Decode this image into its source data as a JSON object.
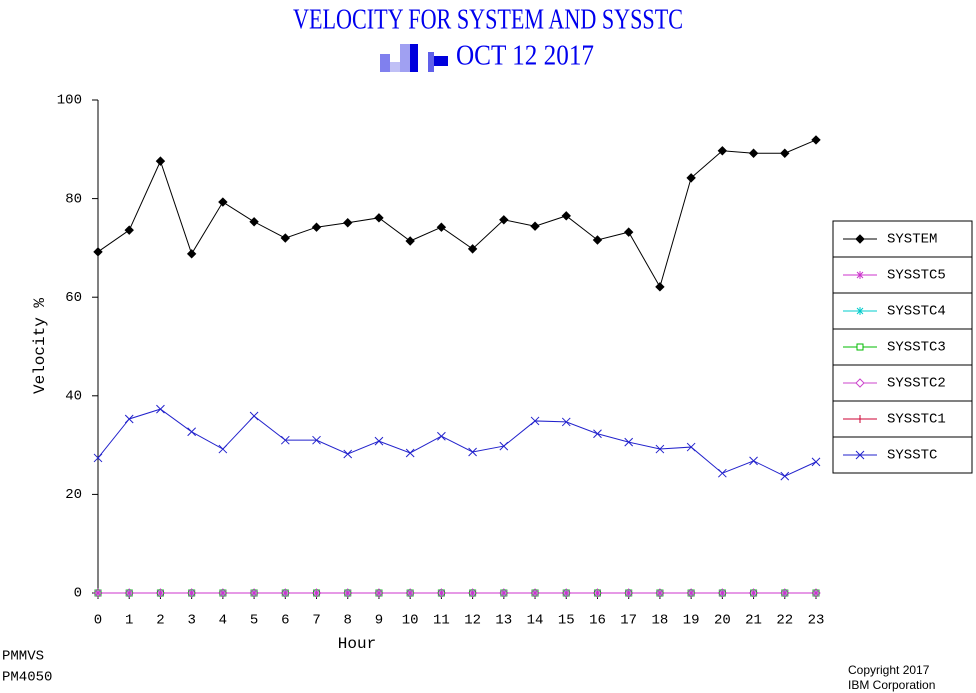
{
  "chart_data": {
    "type": "line",
    "title": "VELOCITY FOR SYSTEM AND SYSSTC",
    "subtitle": "OCT 12 2017",
    "xlabel": "Hour",
    "ylabel": "Velocity %",
    "x": [
      0,
      1,
      2,
      3,
      4,
      5,
      6,
      7,
      8,
      9,
      10,
      11,
      12,
      13,
      14,
      15,
      16,
      17,
      18,
      19,
      20,
      21,
      22,
      23
    ],
    "xlim": [
      0,
      23
    ],
    "xticks": [
      0,
      1,
      2,
      3,
      4,
      5,
      6,
      7,
      8,
      9,
      10,
      11,
      12,
      13,
      14,
      15,
      16,
      17,
      18,
      19,
      20,
      21,
      22,
      23
    ],
    "ylim": [
      0,
      100
    ],
    "yticks": [
      0,
      20,
      40,
      60,
      80,
      100
    ],
    "legend": "right",
    "series": [
      {
        "name": "SYSTEM",
        "color": "#000000",
        "marker": "diamond",
        "values": [
          69.2,
          73.6,
          87.6,
          68.8,
          79.3,
          75.3,
          72.0,
          74.2,
          75.1,
          76.1,
          71.4,
          74.2,
          69.8,
          75.7,
          74.4,
          76.5,
          71.6,
          73.2,
          62.1,
          84.2,
          89.7,
          89.2,
          89.2,
          91.9
        ]
      },
      {
        "name": "SYSSTC5",
        "color": "#cc33cc",
        "marker": "star",
        "values": [
          0,
          0,
          0,
          0,
          0,
          0,
          0,
          0,
          0,
          0,
          0,
          0,
          0,
          0,
          0,
          0,
          0,
          0,
          0,
          0,
          0,
          0,
          0,
          0
        ]
      },
      {
        "name": "SYSSTC4",
        "color": "#00cccc",
        "marker": "star",
        "values": [
          0,
          0,
          0,
          0,
          0,
          0,
          0,
          0,
          0,
          0,
          0,
          0,
          0,
          0,
          0,
          0,
          0,
          0,
          0,
          0,
          0,
          0,
          0,
          0
        ]
      },
      {
        "name": "SYSSTC3",
        "color": "#00bb00",
        "marker": "square",
        "values": [
          0,
          0,
          0,
          0,
          0,
          0,
          0,
          0,
          0,
          0,
          0,
          0,
          0,
          0,
          0,
          0,
          0,
          0,
          0,
          0,
          0,
          0,
          0,
          0
        ]
      },
      {
        "name": "SYSSTC2",
        "color": "#cc44cc",
        "marker": "diamond-open",
        "values": [
          0,
          0,
          0,
          0,
          0,
          0,
          0,
          0,
          0,
          0,
          0,
          0,
          0,
          0,
          0,
          0,
          0,
          0,
          0,
          0,
          0,
          0,
          0,
          0
        ]
      },
      {
        "name": "SYSSTC1",
        "color": "#cc0033",
        "marker": "plus",
        "values": [
          0,
          0,
          0,
          0,
          0,
          0,
          0,
          0,
          0,
          0,
          0,
          0,
          0,
          0,
          0,
          0,
          0,
          0,
          0,
          0,
          0,
          0,
          0,
          0
        ]
      },
      {
        "name": "SYSSTC",
        "color": "#2222cc",
        "marker": "x",
        "values": [
          27.4,
          35.3,
          37.3,
          32.7,
          29.2,
          35.9,
          31.0,
          31.0,
          28.2,
          30.8,
          28.4,
          31.8,
          28.6,
          29.8,
          34.9,
          34.7,
          32.3,
          30.6,
          29.2,
          29.6,
          24.3,
          26.8,
          23.7,
          26.6
        ]
      }
    ]
  },
  "footer": {
    "left": [
      "PMMVS",
      "PM4050"
    ],
    "right": [
      "Copyright 2017",
      "IBM Corporation"
    ]
  }
}
